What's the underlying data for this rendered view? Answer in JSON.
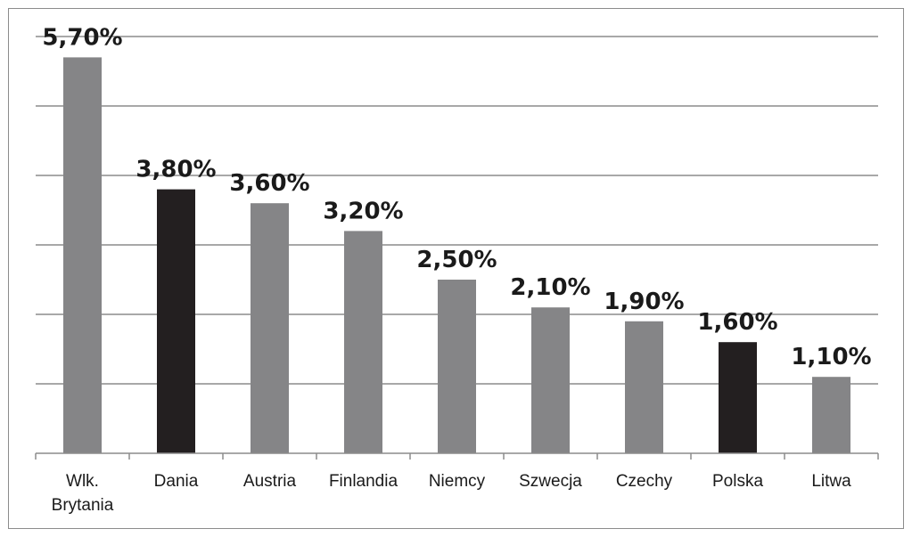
{
  "chart_data": {
    "type": "bar",
    "categories": [
      "Wlk. Brytania",
      "Dania",
      "Austria",
      "Finlandia",
      "Niemcy",
      "Szwecja",
      "Czechy",
      "Polska",
      "Litwa"
    ],
    "category_lines": [
      [
        "Wlk.",
        "Brytania"
      ],
      [
        "Dania"
      ],
      [
        "Austria"
      ],
      [
        "Finlandia"
      ],
      [
        "Niemcy"
      ],
      [
        "Szwecja"
      ],
      [
        "Czechy"
      ],
      [
        "Polska"
      ],
      [
        "Litwa"
      ]
    ],
    "values": [
      5.7,
      3.8,
      3.6,
      3.2,
      2.5,
      2.1,
      1.9,
      1.6,
      1.1
    ],
    "data_labels": [
      "5,70%",
      "3,80%",
      "3,60%",
      "3,20%",
      "2,50%",
      "2,10%",
      "1,90%",
      "1,60%",
      "1,10%"
    ],
    "highlighted": [
      "Dania",
      "Polska"
    ],
    "ylim": [
      0,
      6
    ],
    "gridlines_major_step": 1,
    "grid": true,
    "legend": "none",
    "title": "",
    "xlabel": "",
    "ylabel": "",
    "colors": {
      "bar": "#858587",
      "highlight": "#231f20",
      "grid": "#8c8c8c",
      "text": "#1a1a1a"
    }
  }
}
